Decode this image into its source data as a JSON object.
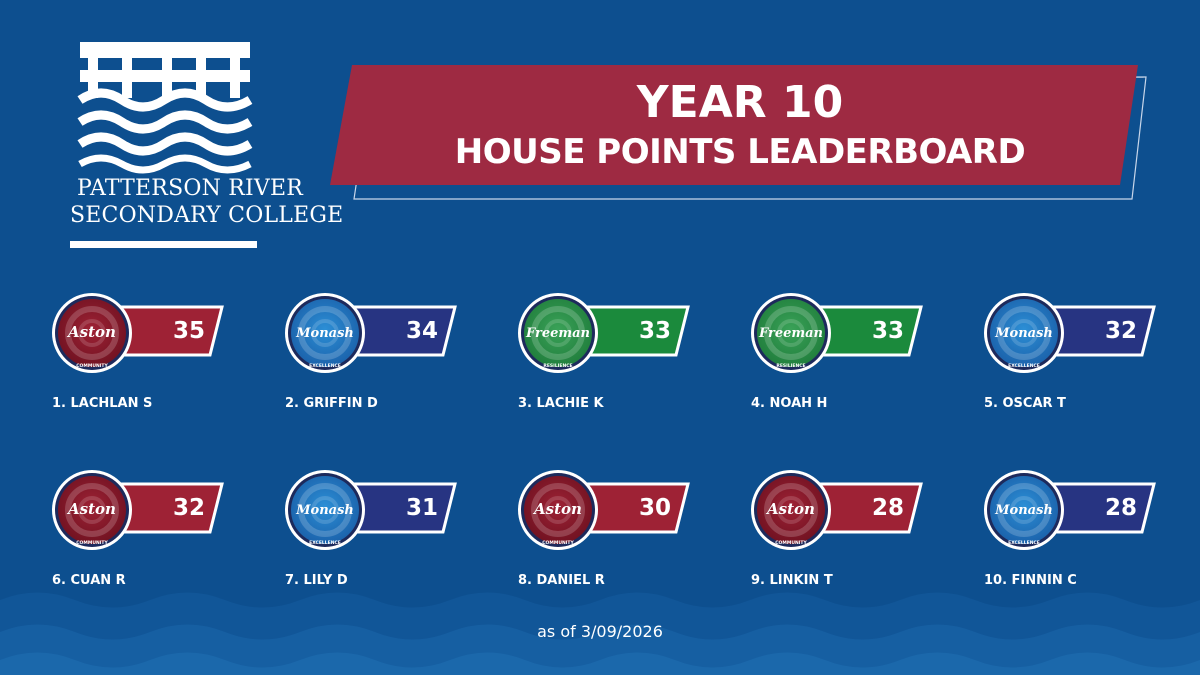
{
  "header": {
    "title_line1": "YEAR 10",
    "title_line2": "HOUSE POINTS LEADERBOARD"
  },
  "school": {
    "name_line1": "PATTERSON RIVER",
    "name_line2": "SECONDARY COLLEGE",
    "logo_icon": "bridge-and-waves-icon"
  },
  "houses": {
    "Aston": {
      "label": "Aston",
      "motto": "COMMUNITY",
      "color": "#9e2235",
      "color_dark": "#6e1120",
      "tag_color": "#9e2235"
    },
    "Monash": {
      "label": "Monash",
      "motto": "EXCELLENCE",
      "color": "#2c8fd6",
      "color_dark": "#1a5fa8",
      "tag_color": "#273482"
    },
    "Freeman": {
      "label": "Freeman",
      "motto": "RESILIENCE",
      "color": "#3aa258",
      "color_dark": "#1f7c3b",
      "tag_color": "#1b8a3c"
    }
  },
  "leaderboard": [
    {
      "rank_name": "1.  LACHLAN S",
      "points": "35",
      "house": "Aston"
    },
    {
      "rank_name": "2. GRIFFIN D",
      "points": "34",
      "house": "Monash"
    },
    {
      "rank_name": "3. LACHIE K",
      "points": "33",
      "house": "Freeman"
    },
    {
      "rank_name": "4. NOAH H",
      "points": "33",
      "house": "Freeman"
    },
    {
      "rank_name": "5.  OSCAR T",
      "points": "32",
      "house": "Monash"
    },
    {
      "rank_name": "6. CUAN R",
      "points": "32",
      "house": "Aston"
    },
    {
      "rank_name": "7. LILY D",
      "points": "31",
      "house": "Monash"
    },
    {
      "rank_name": "8. DANIEL R",
      "points": "30",
      "house": "Aston"
    },
    {
      "rank_name": "9. LINKIN T",
      "points": "28",
      "house": "Aston"
    },
    {
      "rank_name": "10. FINNIN C",
      "points": "28",
      "house": "Monash"
    }
  ],
  "footer": {
    "as_of": "as of 3/09/2026"
  },
  "colors": {
    "background": "#0d4f8f",
    "banner": "#9e2a42",
    "text": "#ffffff"
  }
}
